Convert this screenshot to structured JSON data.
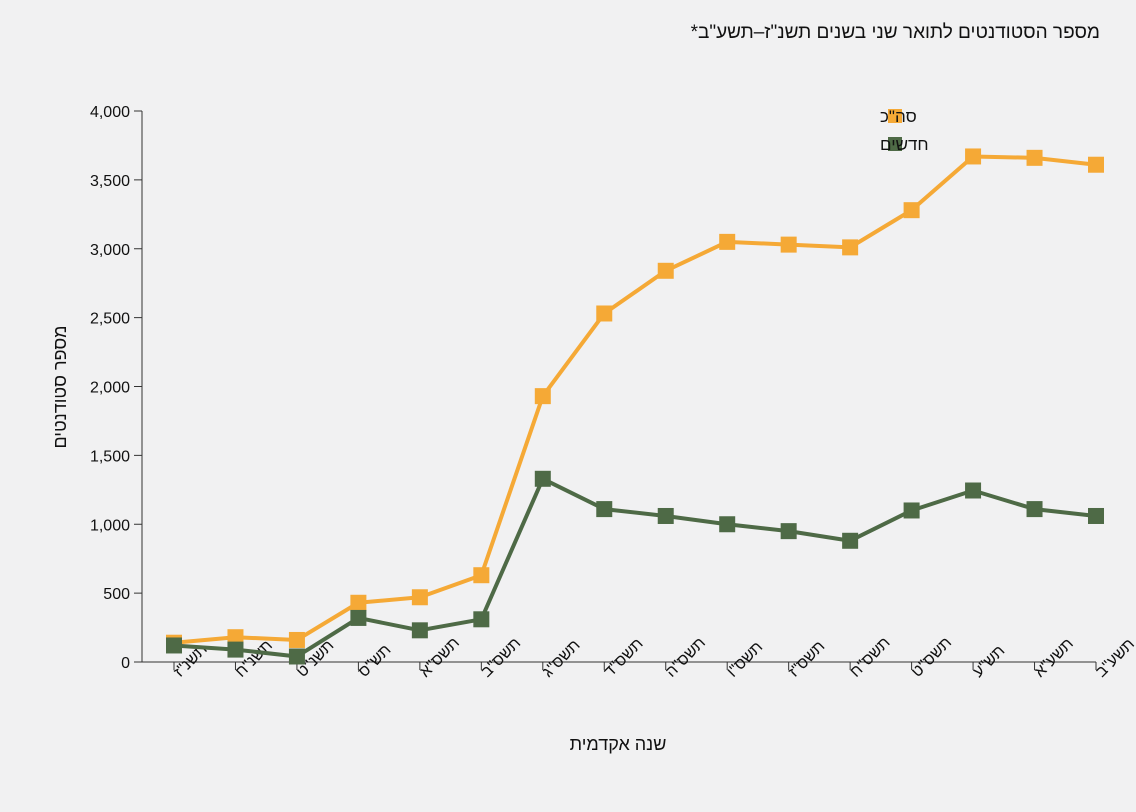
{
  "chart_data": {
    "type": "line",
    "title": "מספר הסטודנטים לתואר שני בשנים תשנ\"ז–תשע\"ב*",
    "xlabel": "שנה אקדמית",
    "ylabel": "מספר סטודנטים",
    "categories": [
      "תשנ\"ז",
      "תשנ\"ח",
      "תשנ\"ט",
      "תש\"ס",
      "תשס\"א",
      "תשס\"ב",
      "תשס\"ג",
      "תשס\"ד",
      "תשס\"ה",
      "תשס\"ו",
      "תשס\"ז",
      "תשס\"ח",
      "תשס\"ט",
      "תש\"ע",
      "תשע\"א",
      "תשע\"ב"
    ],
    "ylim": [
      0,
      4000
    ],
    "yticks": [
      0,
      500,
      1000,
      1500,
      2000,
      2500,
      3000,
      3500,
      4000
    ],
    "ytick_labels": [
      "0",
      "500",
      "1,000",
      "1,500",
      "2,000",
      "2,500",
      "3,000",
      "3,500",
      "4,000"
    ],
    "grid": false,
    "legend_position": "top-right",
    "series": [
      {
        "name": "סה\"כ",
        "color": "#f5a936",
        "values": [
          140,
          180,
          160,
          430,
          470,
          630,
          1930,
          2530,
          2840,
          3050,
          3030,
          3010,
          3280,
          3670,
          3660,
          3610
        ]
      },
      {
        "name": "חדשים",
        "color": "#4e6a46",
        "values": [
          120,
          90,
          40,
          320,
          230,
          310,
          1330,
          1110,
          1060,
          1000,
          950,
          880,
          1100,
          1245,
          1110,
          1060
        ]
      }
    ]
  }
}
